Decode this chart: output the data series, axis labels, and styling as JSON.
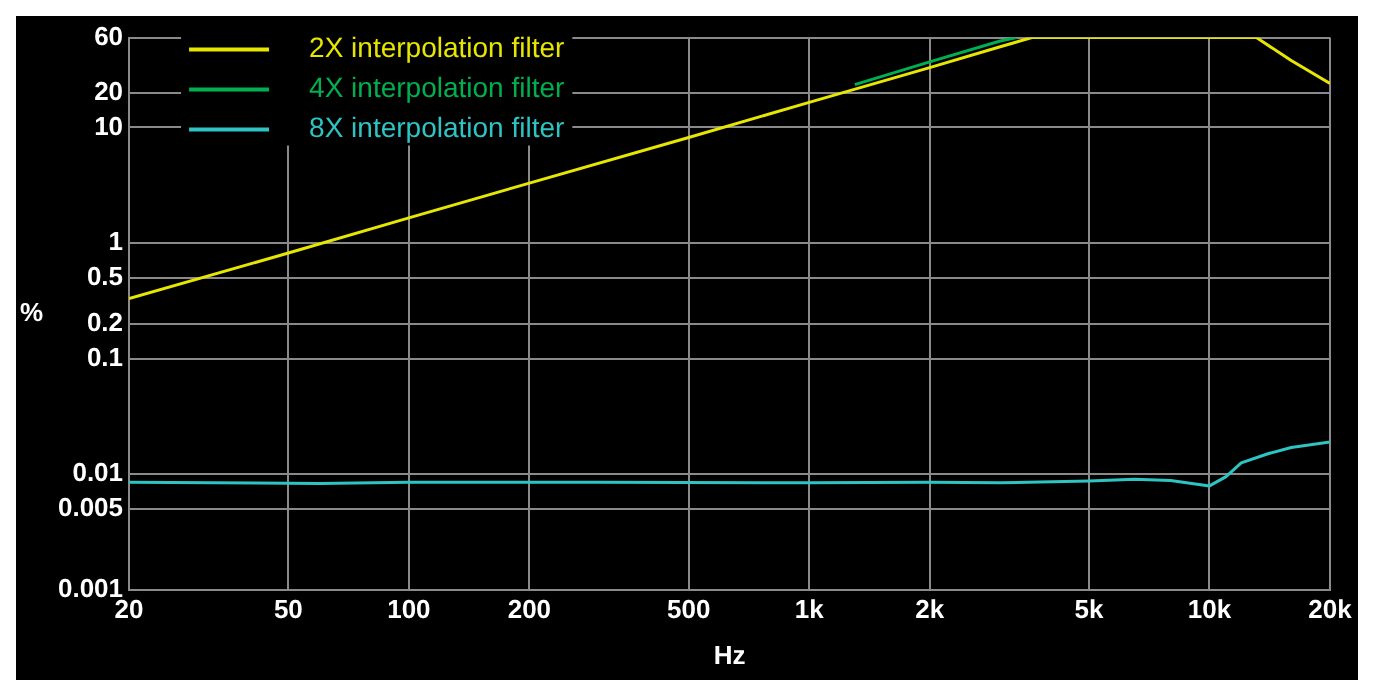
{
  "chart_data": {
    "type": "line",
    "xlabel": "Hz",
    "ylabel": "%",
    "log": "xy",
    "grid": true,
    "legend": "top left",
    "marker": "none",
    "line_style": "solid",
    "xlim": [
      20,
      20000
    ],
    "xticks": [
      20,
      50,
      100,
      200,
      500,
      {
        "value": 1000,
        "label": "1k"
      },
      {
        "value": 2000,
        "label": "2k"
      },
      {
        "value": 5000,
        "label": "5k"
      },
      {
        "value": 10000,
        "label": "10k"
      },
      {
        "value": 20000,
        "label": "20k"
      }
    ],
    "ylim": [
      0.001,
      60
    ],
    "yticks": [
      0.001,
      0.005,
      0.01,
      0.1,
      0.2,
      0.5,
      1,
      10,
      20,
      60
    ],
    "series": [
      {
        "name": "2X interpolation filter",
        "color": "#e6e600",
        "x": [
          20,
          50,
          100,
          200,
          500,
          1000,
          2000,
          3000,
          3600,
          13100,
          16000,
          20000
        ],
        "values": [
          0.33,
          0.82,
          1.65,
          3.3,
          8.2,
          16.5,
          33,
          50,
          60,
          60,
          38,
          24
        ]
      },
      {
        "name": "4X interpolation filter",
        "color": "#00b050",
        "x": [
          1300,
          2000,
          3000,
          3300
        ],
        "values": [
          23.5,
          37,
          56,
          60
        ]
      },
      {
        "name": "8X interpolation filter",
        "color": "#2ec4c4",
        "x": [
          20,
          60,
          100,
          300,
          1000,
          2000,
          3000,
          5000,
          6500,
          8000,
          10000,
          11000,
          12000,
          14000,
          16000,
          20000
        ],
        "values": [
          0.0085,
          0.0083,
          0.0085,
          0.0085,
          0.0084,
          0.0085,
          0.0084,
          0.0087,
          0.009,
          0.0088,
          0.0079,
          0.0095,
          0.0125,
          0.015,
          0.017,
          0.019
        ]
      }
    ]
  }
}
